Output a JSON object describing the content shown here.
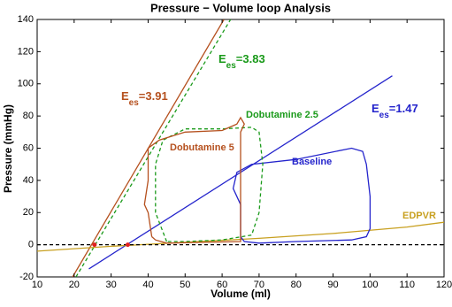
{
  "chart_data": {
    "type": "line",
    "title": "Pressure − Volume loop Analysis",
    "xlabel": "Volume (ml)",
    "ylabel": "Pressure (mmHg)",
    "xlim": [
      10,
      120
    ],
    "ylim": [
      -20,
      140
    ],
    "xticks": [
      10,
      20,
      30,
      40,
      50,
      60,
      70,
      80,
      90,
      100,
      110,
      120
    ],
    "yticks": [
      -20,
      0,
      20,
      40,
      60,
      80,
      100,
      120,
      140
    ],
    "series": [
      {
        "name_parts": [
          "E",
          "es",
          "=3.91"
        ],
        "color": "#b5501e",
        "dash": false,
        "x": [
          19.6,
          60.5
        ],
        "values": [
          -20,
          140
        ]
      },
      {
        "name_parts": [
          "E",
          "es",
          "=3.83"
        ],
        "color": "#1a9a1a",
        "dash": true,
        "x": [
          20.5,
          62.3
        ],
        "values": [
          -20,
          140
        ]
      },
      {
        "name_parts": [
          "E",
          "es",
          "=1.47"
        ],
        "color": "#2424cc",
        "dash": false,
        "x": [
          24,
          106
        ],
        "values": [
          -15,
          105
        ]
      },
      {
        "name": "EDPVR",
        "color": "#c8a020",
        "dash": false,
        "x": [
          10,
          30,
          50,
          70,
          90,
          110,
          120
        ],
        "values": [
          -4,
          -1,
          1.5,
          4,
          7,
          11,
          14
        ]
      },
      {
        "name": "Baseline",
        "color": "#2424cc",
        "dash": false,
        "x": [
          65,
          65,
          63,
          64,
          68,
          80,
          95,
          98,
          99,
          100,
          100,
          99,
          95,
          80,
          70,
          66,
          65
        ],
        "values": [
          5,
          25,
          35,
          45,
          50,
          53,
          60,
          58,
          50,
          30,
          10,
          5,
          3,
          2,
          1,
          2,
          5
        ]
      },
      {
        "name": "Dobutamine 2.5",
        "color": "#1a9a1a",
        "dash": true,
        "x": [
          45,
          42,
          42,
          44,
          50,
          60,
          68,
          70,
          71,
          70,
          68,
          60,
          50,
          45
        ],
        "values": [
          2,
          20,
          50,
          65,
          72,
          72,
          73,
          70,
          50,
          20,
          6,
          3,
          2,
          2
        ]
      },
      {
        "name": "Dobutamine 5",
        "color": "#b5501e",
        "dash": false,
        "x": [
          41,
          40,
          39,
          40,
          40,
          43,
          50,
          60,
          64,
          65,
          66,
          65,
          65,
          65,
          55,
          45,
          42,
          41
        ],
        "values": [
          5,
          20,
          25,
          40,
          60,
          65,
          70,
          71,
          75,
          79,
          75,
          70,
          10,
          2,
          1.5,
          1,
          3,
          5
        ]
      },
      {
        "color": "#000000",
        "dash": true,
        "x": [
          10,
          120
        ],
        "values": [
          0,
          0
        ]
      },
      {
        "color": "#e02020",
        "dash": false,
        "markers": true,
        "x": [
          25.5,
          34.5
        ],
        "values": [
          0,
          0
        ]
      }
    ]
  }
}
